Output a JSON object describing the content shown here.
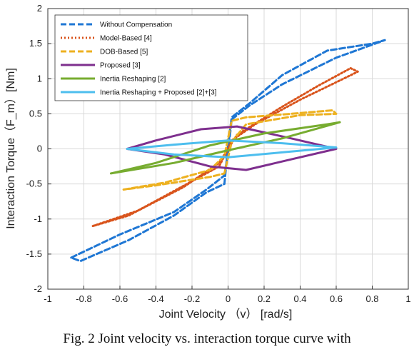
{
  "chart_data": {
    "type": "line",
    "xlabel": "Joint Velocity （v） [rad/s]",
    "ylabel": "Interaction Torque（F_m）[Nm]",
    "xlim": [
      -1,
      1
    ],
    "ylim": [
      -2,
      2
    ],
    "xticks": [
      -1,
      -0.8,
      -0.6,
      -0.4,
      -0.2,
      0,
      0.2,
      0.4,
      0.6,
      0.8,
      1
    ],
    "xtick_labels": [
      "-1",
      "-0.8",
      "-0.6",
      "-0.4",
      "-0.2",
      "0",
      "0.2",
      "0.4",
      "0.6",
      "0.8",
      "1"
    ],
    "yticks": [
      -2,
      -1.5,
      -1,
      -0.5,
      0,
      0.5,
      1,
      1.5,
      2
    ],
    "ytick_labels": [
      "-2",
      "-1.5",
      "-1",
      "-0.5",
      "0",
      "0.5",
      "1",
      "1.5",
      "2"
    ],
    "grid": true,
    "legend_position": "top-left",
    "series": [
      {
        "name": "Without Compensation",
        "color": "#1f77d4",
        "dash": "dashed",
        "x": [
          -0.87,
          -0.6,
          -0.3,
          -0.12,
          -0.02,
          0,
          0.02,
          0.12,
          0.3,
          0.6,
          0.87,
          0.8,
          0.55,
          0.3,
          0.12,
          0.02,
          0,
          -0.02,
          -0.12,
          -0.3,
          -0.55,
          -0.82,
          -0.87
        ],
        "y": [
          -1.55,
          -1.22,
          -0.9,
          -0.58,
          -0.38,
          -0.05,
          0.42,
          0.62,
          0.92,
          1.3,
          1.55,
          1.5,
          1.4,
          1.05,
          0.65,
          0.45,
          0.05,
          -0.5,
          -0.62,
          -0.95,
          -1.3,
          -1.6,
          -1.55
        ]
      },
      {
        "name": "Model-Based [4]",
        "color": "#d9541c",
        "dash": "dotted",
        "x": [
          -0.75,
          -0.5,
          -0.25,
          -0.05,
          0,
          0.05,
          0.3,
          0.5,
          0.68,
          0.72,
          0.6,
          0.4,
          0.15,
          0.02,
          0,
          -0.05,
          -0.3,
          -0.55,
          -0.75
        ],
        "y": [
          -1.1,
          -0.88,
          -0.55,
          -0.2,
          0,
          0.2,
          0.6,
          0.9,
          1.15,
          1.1,
          0.95,
          0.7,
          0.35,
          0.12,
          0,
          -0.25,
          -0.6,
          -0.95,
          -1.1
        ]
      },
      {
        "name": "DOB-Based [5]",
        "color": "#edb120",
        "dash": "dashed",
        "x": [
          -0.58,
          -0.35,
          -0.1,
          -0.02,
          0.02,
          0.1,
          0.35,
          0.58,
          0.6,
          0.4,
          0.1,
          0.02,
          -0.02,
          -0.1,
          -0.4,
          -0.58
        ],
        "y": [
          -0.58,
          -0.48,
          -0.3,
          -0.1,
          0.4,
          0.45,
          0.5,
          0.55,
          0.5,
          0.48,
          0.35,
          0.1,
          -0.35,
          -0.4,
          -0.52,
          -0.58
        ]
      },
      {
        "name": "Proposed [3]",
        "color": "#7e2f8e",
        "dash": "solid",
        "x": [
          -0.56,
          -0.35,
          -0.1,
          0.1,
          0.35,
          0.6,
          0.35,
          0.05,
          -0.15,
          -0.4,
          -0.56
        ],
        "y": [
          0,
          -0.08,
          -0.25,
          -0.3,
          -0.15,
          0,
          0.15,
          0.32,
          0.28,
          0.12,
          0
        ]
      },
      {
        "name": "Inertia Reshaping [2]",
        "color": "#77ac30",
        "dash": "solid",
        "x": [
          -0.65,
          -0.3,
          0,
          0.3,
          0.62,
          0.55,
          0.2,
          -0.1,
          -0.4,
          -0.65
        ],
        "y": [
          -0.35,
          -0.2,
          -0.02,
          0.15,
          0.38,
          0.35,
          0.22,
          0.05,
          -0.2,
          -0.35
        ]
      },
      {
        "name": "Inertia Reshaping + Proposed [2]+[3]",
        "color": "#4dbeee",
        "dash": "solid",
        "x": [
          -0.56,
          -0.3,
          0,
          0.3,
          0.6,
          0.3,
          0,
          -0.3,
          -0.56
        ],
        "y": [
          0,
          -0.08,
          -0.12,
          -0.05,
          0.02,
          0.08,
          0.12,
          0.06,
          0
        ]
      }
    ]
  },
  "caption": "Fig. 2 Joint velocity vs. interaction torque curve with"
}
